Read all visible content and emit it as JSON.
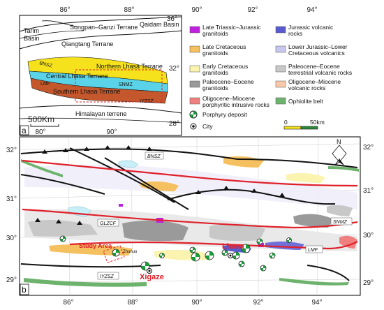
{
  "top_axis": {
    "lon_ticks": [
      "86°",
      "88°",
      "90°",
      "92°",
      "94°"
    ]
  },
  "panel_a": {
    "label": "a",
    "lat_ticks": [
      "36°",
      "32°",
      "28°"
    ],
    "lon_ticks": [
      "80°",
      "90°"
    ],
    "labels": {
      "qaidam": "Qaidam Basin",
      "tarim_1": "Tarim",
      "tarim_2": "Basin",
      "songpan": "Songpan–Ganzi Terrane",
      "qiangtang": "Qiangtang Terrane",
      "bnsz": "BNSZ",
      "northern_lhasa": "Northern Lhasa Terrane",
      "central_lhasa": "Central Lhasa Terrane",
      "snmz": "SNMZ",
      "lmf": "LMF",
      "southern_lhasa": "Southern Lhasa Terrane",
      "iyzsz": "IYZSZ",
      "himalayan": "Himalayan terrene"
    },
    "scale_label": "500Km"
  },
  "legend": {
    "items": [
      {
        "text1": "Late Triassic–Jurassic",
        "text2": "granitoids",
        "color": "#c020e0"
      },
      {
        "text1": "Jurassic volcanic",
        "text2": "rocks",
        "color": "#5a5ad0"
      },
      {
        "text1": "Late Cretaceous",
        "text2": "granitoids",
        "color": "#f5c060"
      },
      {
        "text1": "Lower Jurassic–Lower",
        "text2": "Cretaceous volcanics",
        "color": "#c8c8ee"
      },
      {
        "text1": "Early Cretaceous",
        "text2": "granitoids",
        "color": "#fbf4b0"
      },
      {
        "text1": "Paleocene–Eocene",
        "text2": "terrestrial volcanic rocks",
        "color": "#c8c8c8"
      },
      {
        "text1": "Paleocene–Eocene",
        "text2": "granitoids",
        "color": "#9a9a9a"
      },
      {
        "text1": "Oligocene–Miocene",
        "text2": "volcanic rocks",
        "color": "#f8c8a8"
      },
      {
        "text1": "Oligocene–Miocene",
        "text2": "porphyritic intrusive rocks",
        "color": "#f08080"
      },
      {
        "text1": "Ophiolite belt",
        "text2": "",
        "color": "#6db36d"
      }
    ],
    "porphyry_label": "Porphyry deposit",
    "city_label": "City",
    "scale": {
      "start": "0",
      "end": "50km"
    }
  },
  "panel_b": {
    "label": "b",
    "lat_ticks_left": [
      "32°",
      "31°",
      "30°",
      "29°"
    ],
    "lat_ticks_right": [
      "32°",
      "31°",
      "30°",
      "29°"
    ],
    "lon_ticks": [
      "86°",
      "88°",
      "90°",
      "92°",
      "94°"
    ],
    "north": "N",
    "labels": {
      "bnsz": "BNSZ",
      "glzcf": "GLZCF",
      "snmz": "SNMZ",
      "lmf": "LMF",
      "iyzsz": "IYZSZ",
      "study_area": "Study Area",
      "zhunuo": "Zhunuo",
      "lhasa": "Lhasa",
      "xigaze": "Xigaze"
    }
  },
  "colors": {
    "frame": "#000000",
    "fault_red": "#e0202a",
    "northern_lhasa": "#f5e21c",
    "central_lhasa": "#5ad2e8",
    "southern_lhasa": "#c4582c",
    "ophiolite": "#6db36d",
    "lake": "#c8eef8"
  }
}
